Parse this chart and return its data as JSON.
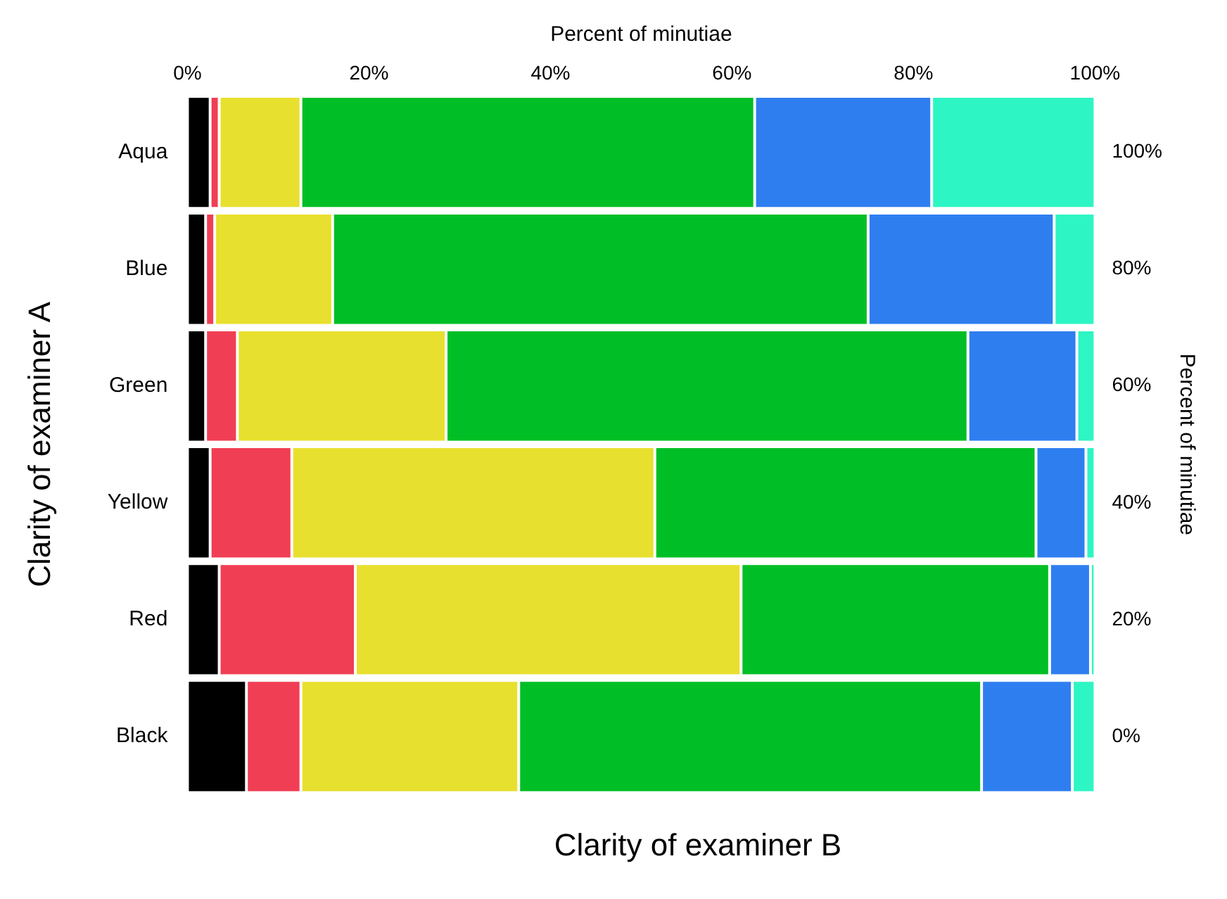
{
  "chart_data": {
    "type": "bar",
    "orientation": "horizontal",
    "stacked": true,
    "categories": [
      "Aqua",
      "Blue",
      "Green",
      "Yellow",
      "Red",
      "Black"
    ],
    "xlabel": "Percent of minutiae",
    "ylabel": "Clarity of examiner A",
    "annotations": [
      "Clarity of examiner B"
    ],
    "xlim": [
      0,
      100
    ],
    "xticks": [
      {
        "value": 0,
        "label": "0%"
      },
      {
        "value": 20,
        "label": "20%"
      },
      {
        "value": 40,
        "label": "40%"
      },
      {
        "value": 60,
        "label": "60%"
      },
      {
        "value": 80,
        "label": "80%"
      },
      {
        "value": 100,
        "label": "100%"
      }
    ],
    "y2label": "Percent of minutiae",
    "y2lim": [
      0,
      100
    ],
    "y2ticks": [
      {
        "value": 0,
        "label": "0%"
      },
      {
        "value": 20,
        "label": "20%"
      },
      {
        "value": 40,
        "label": "40%"
      },
      {
        "value": 60,
        "label": "60%"
      },
      {
        "value": 80,
        "label": "80%"
      },
      {
        "value": 100,
        "label": "100%"
      }
    ],
    "grid": false,
    "legend": false,
    "series": [
      {
        "color": "#000000",
        "values": [
          2.5,
          2,
          2,
          2.5,
          3.5,
          6.5
        ]
      },
      {
        "color": "#f03e55",
        "values": [
          1,
          1,
          3.5,
          9,
          15,
          6
        ]
      },
      {
        "color": "#e8e02e",
        "values": [
          9,
          13,
          23,
          40,
          42.5,
          24
        ]
      },
      {
        "color": "#00bf26",
        "values": [
          50,
          59,
          57.5,
          42,
          34,
          51
        ]
      },
      {
        "color": "#2f7ef0",
        "values": [
          19.5,
          20.5,
          12,
          5.5,
          4.5,
          10
        ]
      },
      {
        "color": "#2ef5c4",
        "values": [
          18,
          4.5,
          2,
          1,
          0.5,
          2.5
        ]
      }
    ]
  }
}
